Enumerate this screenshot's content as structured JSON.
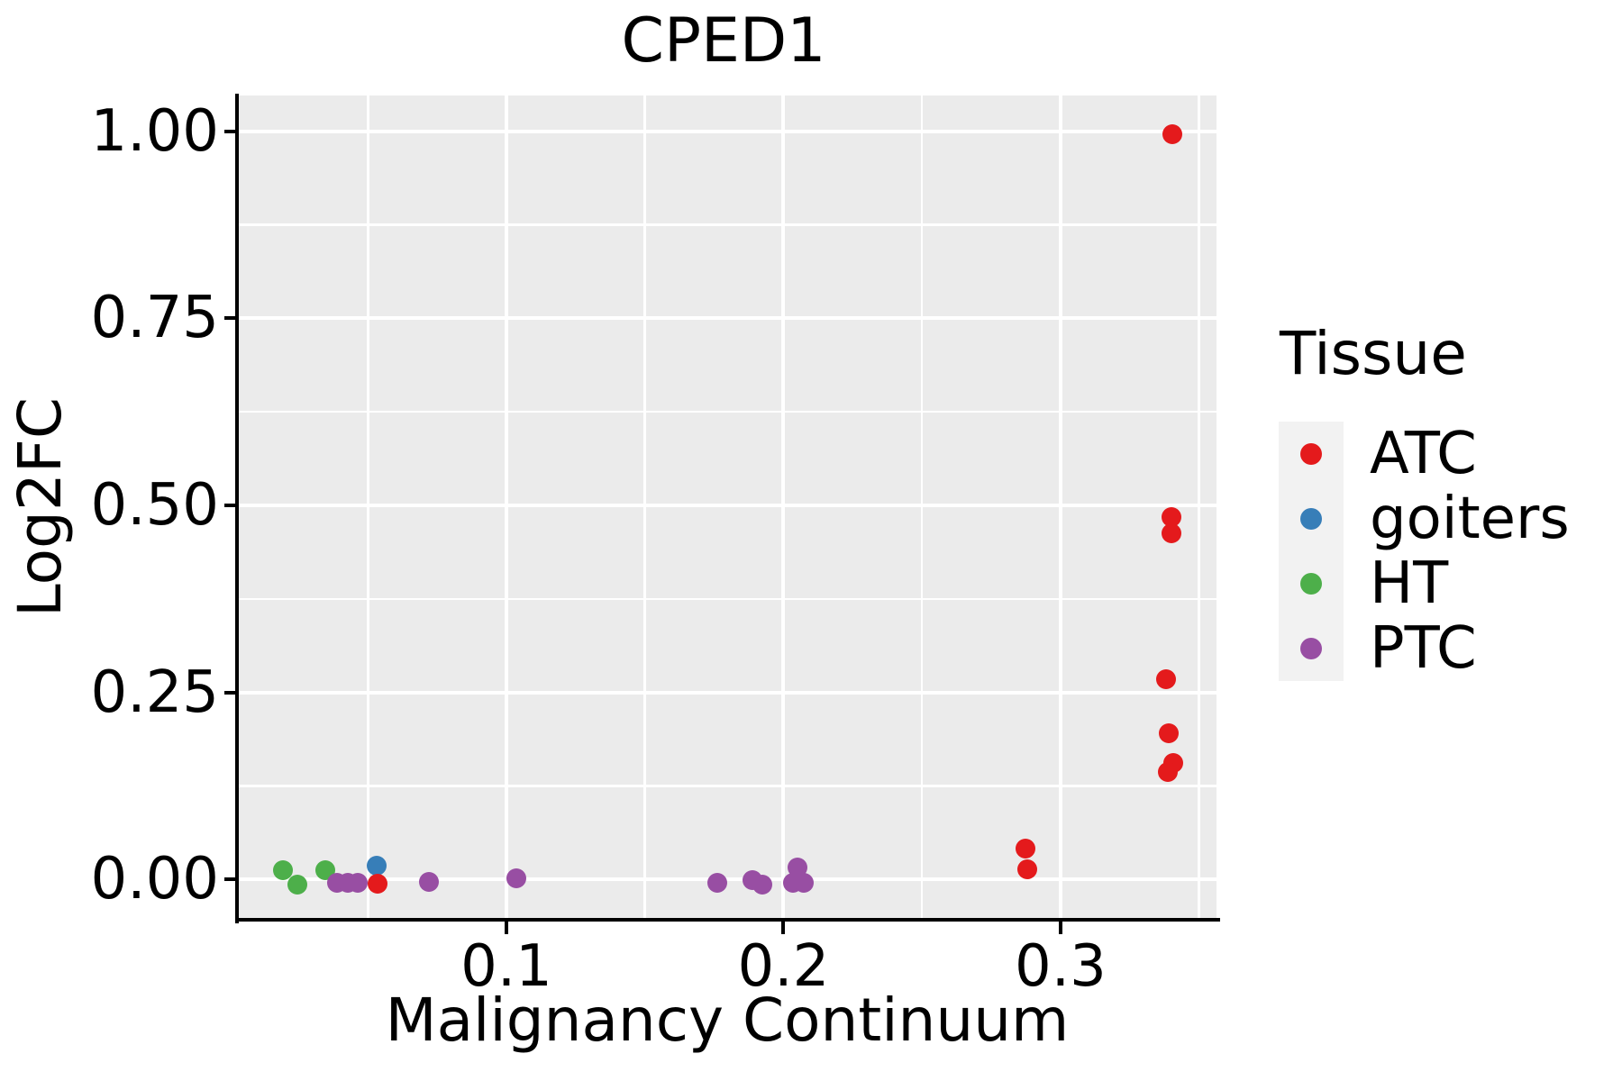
{
  "figure": {
    "title": "CPED1"
  },
  "chart_data": {
    "type": "scatter",
    "title": "CPED1",
    "xlabel": "Malignancy Continuum",
    "ylabel": "Log2FC",
    "xlim": [
      0.0034,
      0.3563
    ],
    "ylim": [
      -0.054,
      1.048
    ],
    "grid": true,
    "panel_bg": "#EBEBEB",
    "grid_color": "#FFFFFF",
    "axis_color": "#000000",
    "x_ticks": [
      {
        "value": 0.1,
        "label": "0.1"
      },
      {
        "value": 0.2,
        "label": "0.2"
      },
      {
        "value": 0.3,
        "label": "0.3"
      }
    ],
    "x_minor_ticks": [
      0.05,
      0.15,
      0.25,
      0.35
    ],
    "y_ticks": [
      {
        "value": 0.0,
        "label": "0.00"
      },
      {
        "value": 0.25,
        "label": "0.25"
      },
      {
        "value": 0.5,
        "label": "0.50"
      },
      {
        "value": 0.75,
        "label": "0.75"
      },
      {
        "value": 1.0,
        "label": "1.00"
      }
    ],
    "y_minor_ticks": [
      0.125,
      0.375,
      0.625,
      0.875
    ],
    "series": [
      {
        "name": "ATC",
        "color": "#E41A1C",
        "points": [
          [
            0.0535,
            -0.006
          ],
          [
            0.2873,
            0.041
          ],
          [
            0.288,
            0.014
          ],
          [
            0.3403,
            0.996
          ],
          [
            0.34,
            0.484
          ],
          [
            0.34,
            0.463
          ],
          [
            0.338,
            0.267
          ],
          [
            0.339,
            0.195
          ],
          [
            0.3407,
            0.155
          ],
          [
            0.3387,
            0.143
          ]
        ]
      },
      {
        "name": "goiters",
        "color": "#377EB8",
        "points": [
          [
            0.0532,
            0.018
          ]
        ]
      },
      {
        "name": "HT",
        "color": "#4DAF4A",
        "points": [
          [
            0.0194,
            0.012
          ],
          [
            0.0246,
            -0.007
          ],
          [
            0.0347,
            0.012
          ]
        ]
      },
      {
        "name": "PTC",
        "color": "#984EA3",
        "points": [
          [
            0.0389,
            -0.005
          ],
          [
            0.0428,
            -0.005
          ],
          [
            0.0464,
            -0.005
          ],
          [
            0.072,
            -0.004
          ],
          [
            0.1036,
            0.001
          ],
          [
            0.176,
            -0.005
          ],
          [
            0.1888,
            -0.001
          ],
          [
            0.1924,
            -0.007
          ],
          [
            0.2034,
            -0.005
          ],
          [
            0.205,
            0.016
          ],
          [
            0.2073,
            -0.005
          ]
        ]
      }
    ],
    "legend": {
      "title": "Tissue",
      "position": "right",
      "entries": [
        {
          "label": "ATC",
          "color": "#E41A1C"
        },
        {
          "label": "goiters",
          "color": "#377EB8"
        },
        {
          "label": "HT",
          "color": "#4DAF4A"
        },
        {
          "label": "PTC",
          "color": "#984EA3"
        }
      ]
    }
  }
}
